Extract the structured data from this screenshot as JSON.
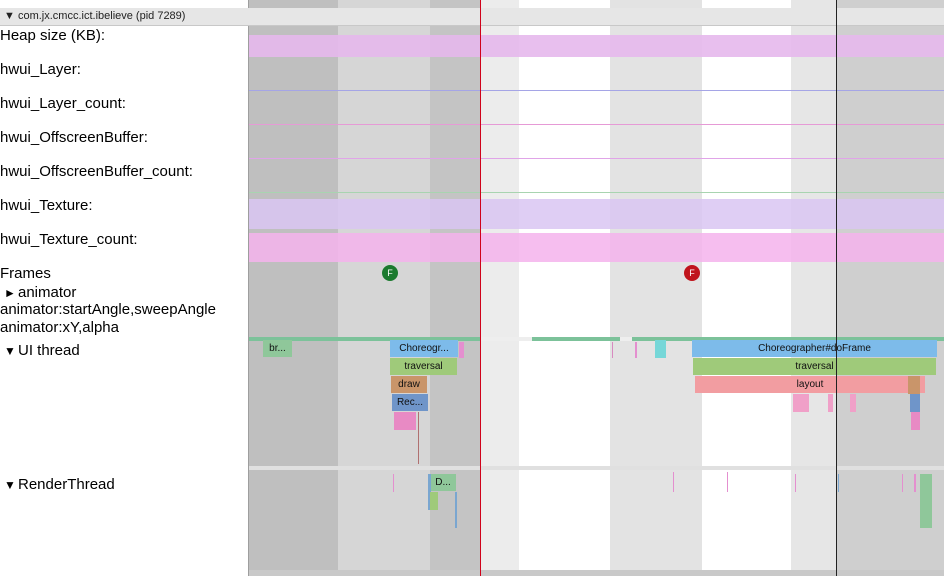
{
  "process": {
    "title": "com.jx.cmcc.ict.ibelieve (pid 7289)",
    "toggle": "▼"
  },
  "tracks": [
    {
      "label": "Heap size (KB):"
    },
    {
      "label": "hwui_Layer:"
    },
    {
      "label": "hwui_Layer_count:"
    },
    {
      "label": "hwui_OffscreenBuffer:"
    },
    {
      "label": "hwui_OffscreenBuffer_count:"
    },
    {
      "label": "hwui_Texture:"
    },
    {
      "label": "hwui_Texture_count:"
    },
    {
      "label": "Frames"
    }
  ],
  "animator": {
    "toggle": "►",
    "label": "animator",
    "sub1": "animator:startAngle,sweepAngle",
    "sub2": "animator:xY,alpha"
  },
  "ui_thread": {
    "toggle": "▼",
    "label": "UI thread"
  },
  "render_thread": {
    "toggle": "▼",
    "label": "RenderThread"
  },
  "frames": {
    "marker1": "F",
    "marker2": "F",
    "marker1_color": "#1b7a2e",
    "marker2_color": "#c0141c"
  },
  "slices": {
    "br": "br...",
    "choreo_short": "Choreogr...",
    "traversal_1": "traversal",
    "draw": "draw",
    "rec": "Rec...",
    "choreo_long": "Choreographer#doFrame",
    "traversal_2": "traversal",
    "layout": "layout",
    "d": "D..."
  },
  "colors": {
    "heap": "#e6b8ec",
    "texture": "#d9c6f2",
    "texture_count": "#f4b3ec",
    "choreo": "#7dbbea",
    "traversal": "#9fca7a",
    "draw": "#c9956a",
    "layout": "#f29da1",
    "rec": "#6f95c9",
    "cursor_red": "#d0021b"
  }
}
